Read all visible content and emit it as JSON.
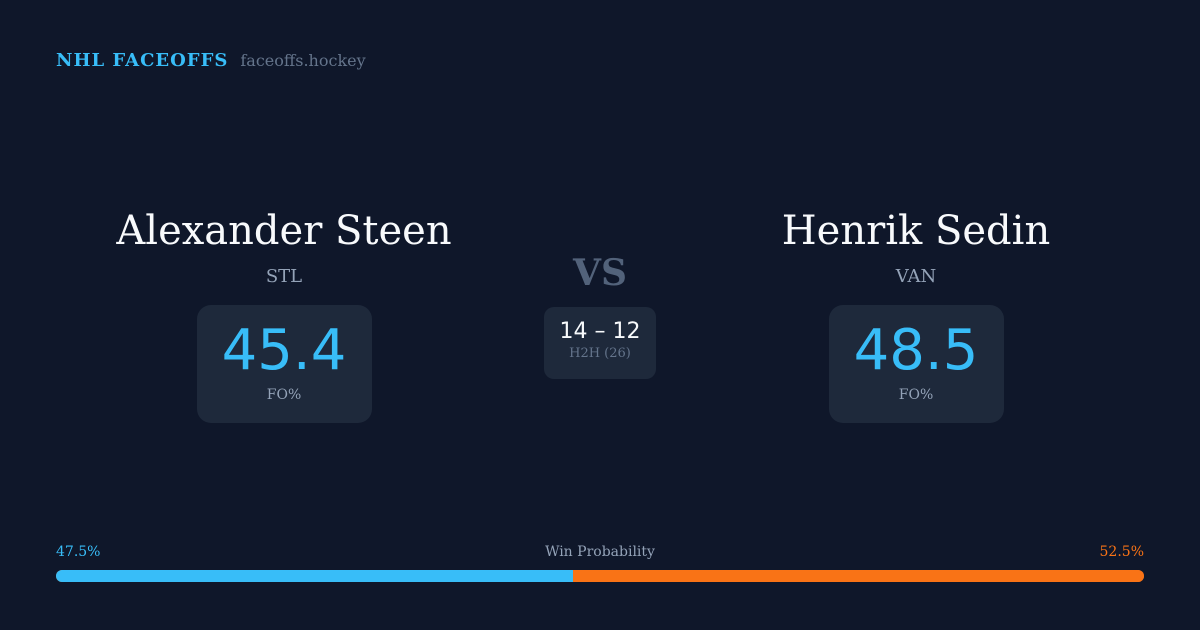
{
  "brand": {
    "name": "NHL FACEOFFS",
    "url": "faceoffs.hockey"
  },
  "players": [
    {
      "name": "Alexander Steen",
      "team": "STL",
      "fo_pct": "45.4",
      "fo_label": "FO%"
    },
    {
      "name": "Henrik Sedin",
      "team": "VAN",
      "fo_pct": "48.5",
      "fo_label": "FO%"
    }
  ],
  "vs": "VS",
  "h2h": {
    "score": "14 – 12",
    "label": "H2H (26)"
  },
  "win_probability": {
    "title": "Win Probability",
    "left_label": "47.5%",
    "right_label": "52.5%",
    "left_value": 47.5,
    "right_value": 52.5
  },
  "colors": {
    "accent_left": "#38bdf8",
    "accent_right": "#f97316",
    "background": "#0f172a",
    "card": "#1e293b"
  }
}
